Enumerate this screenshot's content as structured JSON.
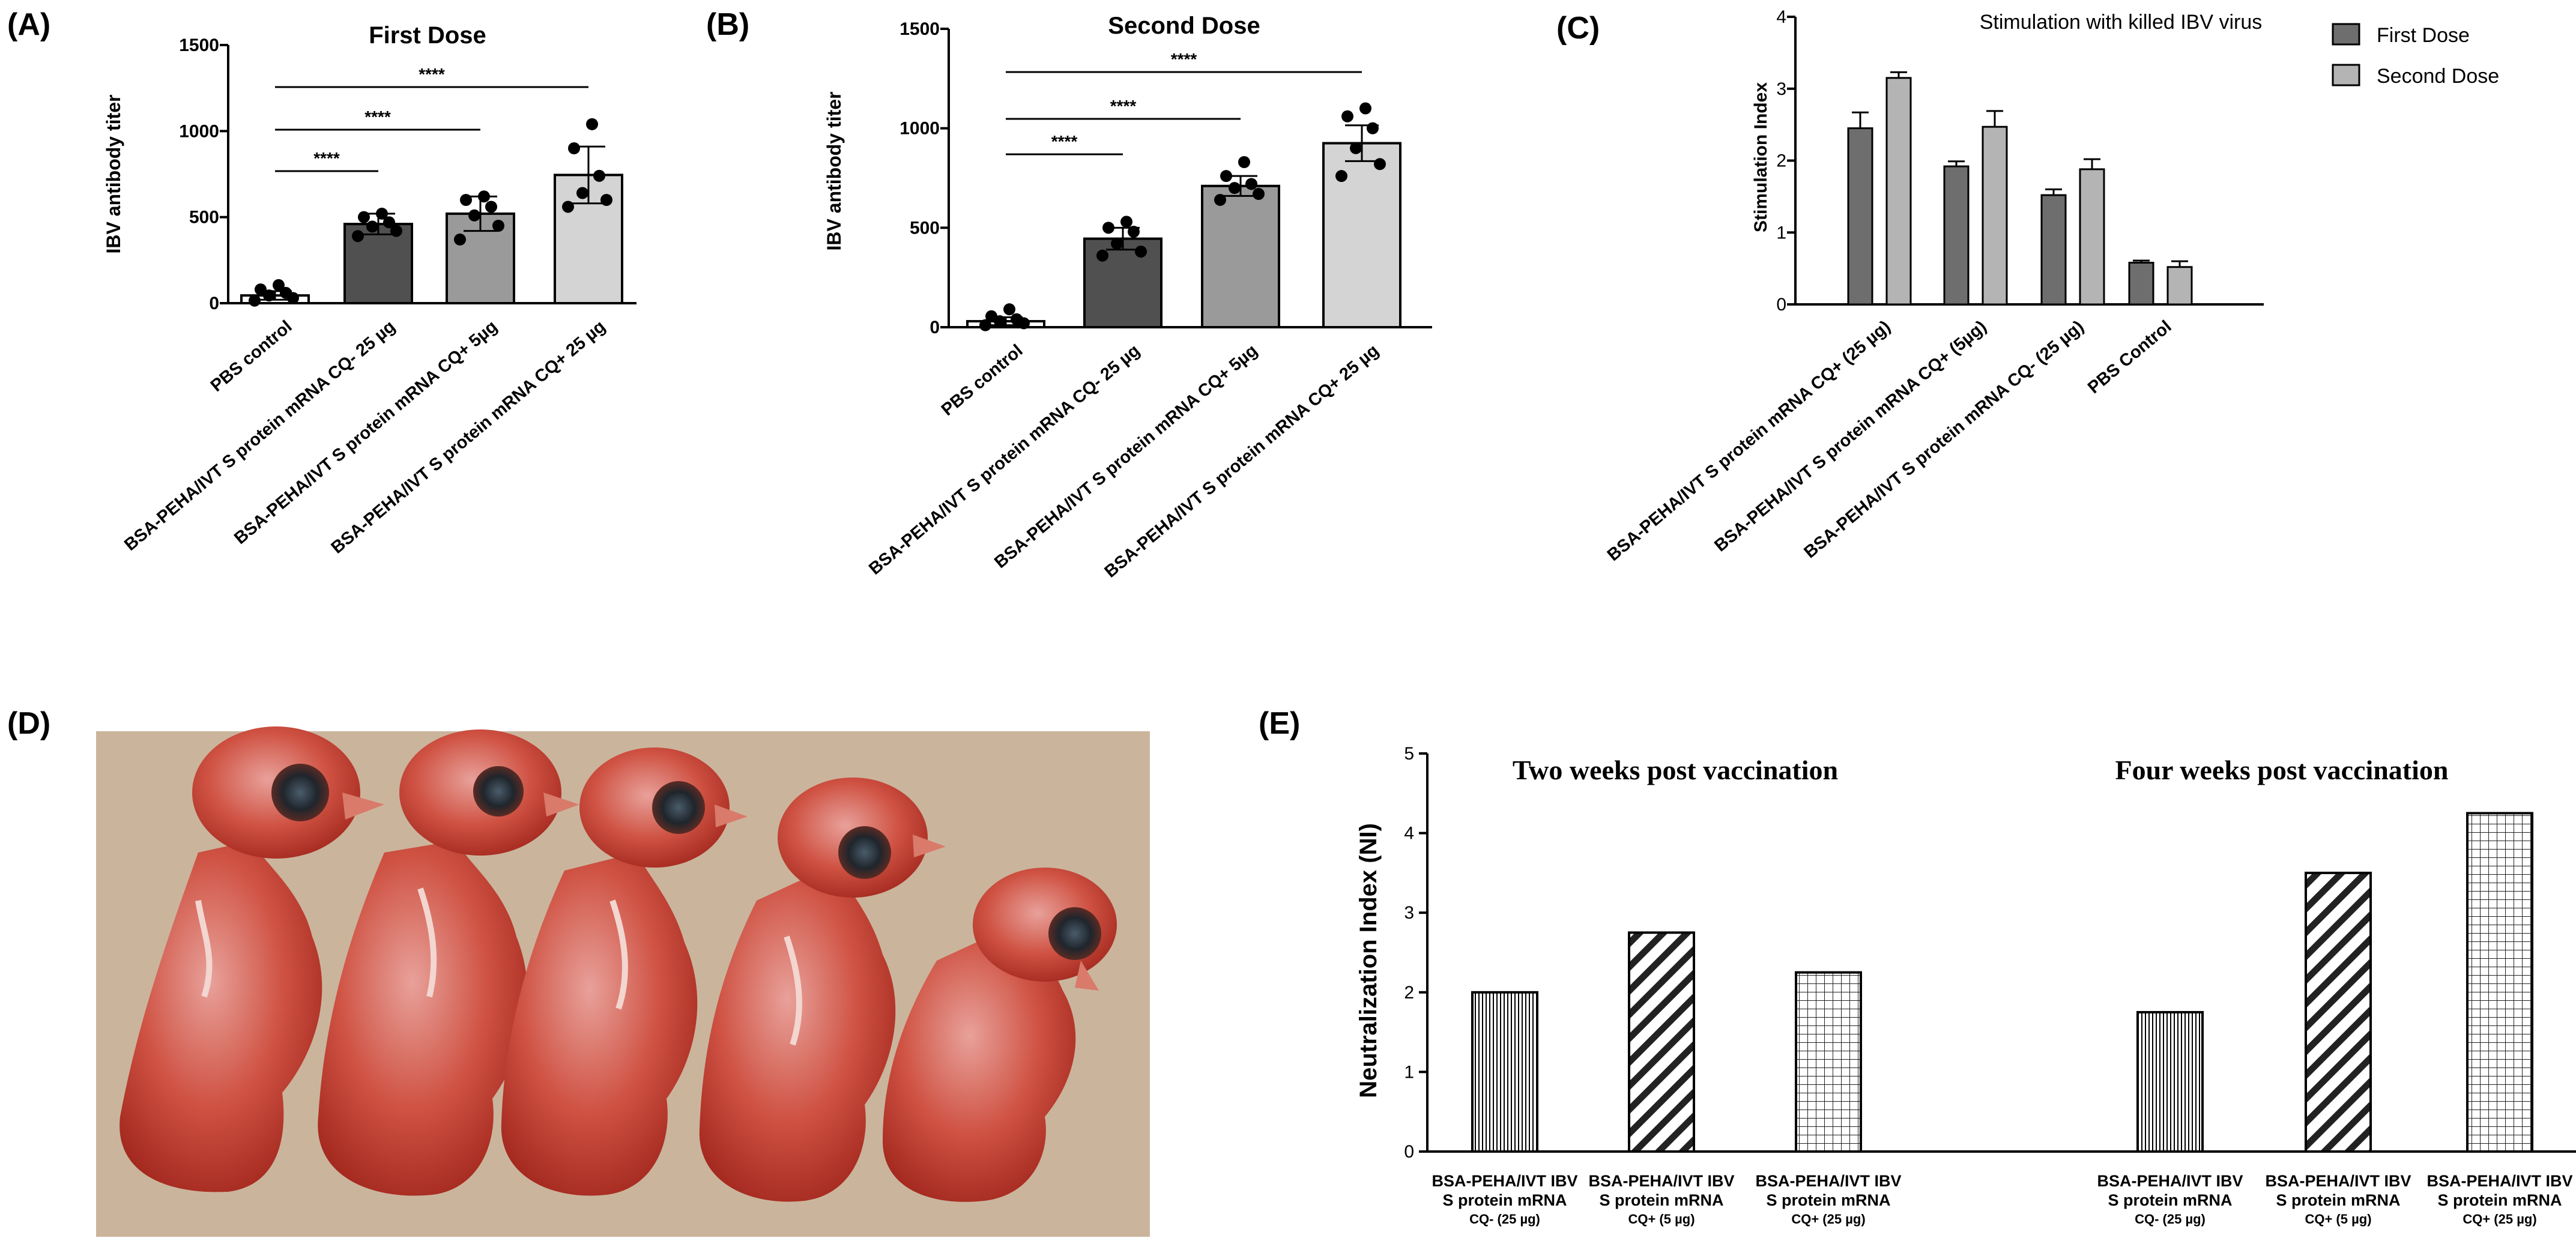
{
  "panels": {
    "a": "(A)",
    "b": "(B)",
    "c": "(C)",
    "d": "(D)",
    "e": "(E)"
  },
  "photo": {
    "description_name": "chicken-embryos-photo"
  },
  "chart_data": [
    {
      "id": "A",
      "type": "bar",
      "title": "First Dose",
      "ylabel": "IBV antibody titer",
      "ylim": [
        0,
        1500
      ],
      "yticks": [
        0,
        500,
        1000,
        1500
      ],
      "categories": [
        "PBS control",
        "BSA-PEHA/IVT S protein mRNA CQ- 25 µg",
        "BSA-PEHA/IVT S protein mRNA CQ+ 5µg",
        "BSA-PEHA/IVT S protein mRNA CQ+ 25 µg"
      ],
      "values": [
        45,
        460,
        520,
        745
      ],
      "errors": [
        25,
        60,
        100,
        165
      ],
      "colors": [
        "#ffffff",
        "#505050",
        "#9a9a9a",
        "#d4d4d4"
      ],
      "points": [
        [
          15,
          30,
          45,
          60,
          80,
          105
        ],
        [
          390,
          420,
          445,
          470,
          500,
          520
        ],
        [
          370,
          450,
          510,
          560,
          600,
          620
        ],
        [
          560,
          600,
          640,
          740,
          900,
          1040
        ]
      ],
      "significance": [
        {
          "from": 0,
          "to": 1,
          "label": "****"
        },
        {
          "from": 0,
          "to": 2,
          "label": "****"
        },
        {
          "from": 0,
          "to": 3,
          "label": "****"
        }
      ]
    },
    {
      "id": "B",
      "type": "bar",
      "title": "Second Dose",
      "ylabel": "IBV antibody titer",
      "ylim": [
        0,
        1500
      ],
      "yticks": [
        0,
        500,
        1000,
        1500
      ],
      "categories": [
        "PBS control",
        "BSA-PEHA/IVT S protein mRNA CQ- 25 µg",
        "BSA-PEHA/IVT S protein mRNA CQ+ 5µg",
        "BSA-PEHA/IVT S protein mRNA CQ+ 25 µg"
      ],
      "values": [
        30,
        445,
        710,
        925
      ],
      "errors": [
        20,
        55,
        50,
        90
      ],
      "colors": [
        "#ffffff",
        "#505050",
        "#9a9a9a",
        "#d4d4d4"
      ],
      "points": [
        [
          10,
          20,
          30,
          40,
          55,
          90
        ],
        [
          360,
          380,
          420,
          480,
          500,
          530
        ],
        [
          640,
          670,
          700,
          720,
          760,
          830
        ],
        [
          760,
          820,
          900,
          1000,
          1060,
          1100
        ]
      ],
      "significance": [
        {
          "from": 0,
          "to": 1,
          "label": "****"
        },
        {
          "from": 0,
          "to": 2,
          "label": "****"
        },
        {
          "from": 0,
          "to": 3,
          "label": "****"
        }
      ]
    },
    {
      "id": "C",
      "type": "bar",
      "title": "Stimulation with killed IBV virus",
      "ylabel": "Stimulation Index",
      "ylim": [
        0,
        4
      ],
      "yticks": [
        0,
        1,
        2,
        3,
        4
      ],
      "categories": [
        "BSA-PEHA/IVT S protein mRNA CQ+ (25 µg)",
        "BSA-PEHA/IVT S protein mRNA CQ+ (5µg)",
        "BSA-PEHA/IVT S protein mRNA CQ- (25 µg)",
        "PBS Control"
      ],
      "series": [
        {
          "name": "First Dose",
          "color": "#6e6e6e",
          "values": [
            2.45,
            1.92,
            1.52,
            0.58
          ],
          "errors": [
            0.22,
            0.07,
            0.08,
            0.03
          ]
        },
        {
          "name": "Second Dose",
          "color": "#b4b4b4",
          "values": [
            3.15,
            2.47,
            1.88,
            0.52
          ],
          "errors": [
            0.08,
            0.22,
            0.14,
            0.08
          ]
        }
      ]
    },
    {
      "id": "E",
      "type": "bar",
      "ylabel": "Neutralization Index (NI)",
      "ylim": [
        0,
        5
      ],
      "yticks": [
        0,
        1,
        2,
        3,
        4,
        5
      ],
      "groups": [
        {
          "title": "Two weeks post vaccination",
          "values": [
            2.0,
            2.75,
            2.25
          ]
        },
        {
          "title": "Four weeks post vaccination",
          "values": [
            1.75,
            3.5,
            4.25
          ]
        }
      ],
      "categories": [
        {
          "line1": "BSA-PEHA/IVT IBV",
          "line2": "S protein mRNA",
          "line3": "CQ- (25 µg)"
        },
        {
          "line1": "BSA-PEHA/IVT IBV",
          "line2": "S protein mRNA",
          "line3": "CQ+ (5 µg)"
        },
        {
          "line1": "BSA-PEHA/IVT IBV",
          "line2": "S protein mRNA",
          "line3": "CQ+ (25 µg)"
        }
      ],
      "patterns": [
        "vertical-lines",
        "diagonal-lines",
        "grid"
      ]
    }
  ]
}
